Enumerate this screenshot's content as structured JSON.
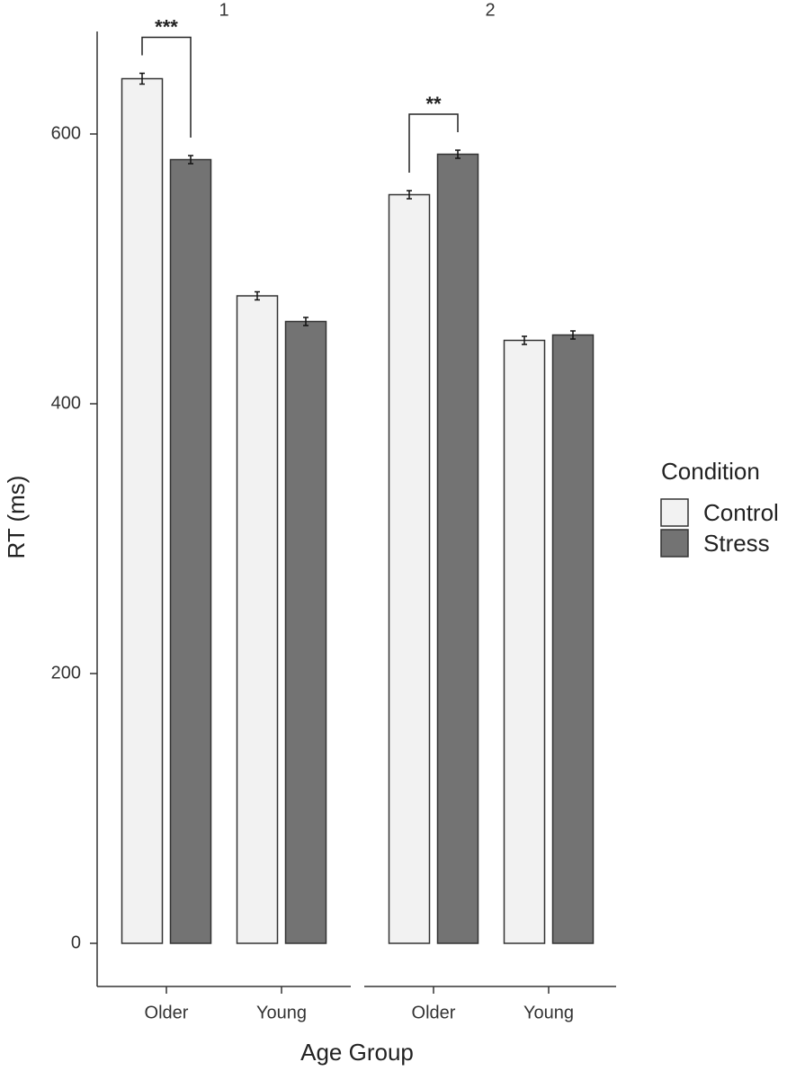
{
  "chart_data": {
    "type": "bar",
    "x_label": "Age Group",
    "y_label": "RT (ms)",
    "ylim": [
      -32,
      676
    ],
    "yticks": [
      0,
      200,
      400,
      600
    ],
    "legend": {
      "title": "Condition",
      "position": "right",
      "entries": [
        {
          "name": "Control",
          "color": "#f2f2f2"
        },
        {
          "name": "Stress",
          "color": "#737373"
        }
      ]
    },
    "facets": [
      {
        "label": "1",
        "categories": [
          "Older",
          "Young"
        ],
        "series": [
          {
            "values": [
              641,
              480
            ],
            "errors": [
              4,
              3
            ]
          },
          {
            "values": [
              581,
              461
            ],
            "errors": [
              3,
              3
            ]
          }
        ],
        "annotations": [
          {
            "text": "***",
            "category": 0
          }
        ]
      },
      {
        "label": "2",
        "categories": [
          "Older",
          "Young"
        ],
        "series": [
          {
            "values": [
              555,
              447
            ],
            "errors": [
              3,
              3
            ]
          },
          {
            "values": [
              585,
              451
            ],
            "errors": [
              3,
              3
            ]
          }
        ],
        "annotations": [
          {
            "text": "**",
            "category": 0
          }
        ]
      }
    ]
  }
}
